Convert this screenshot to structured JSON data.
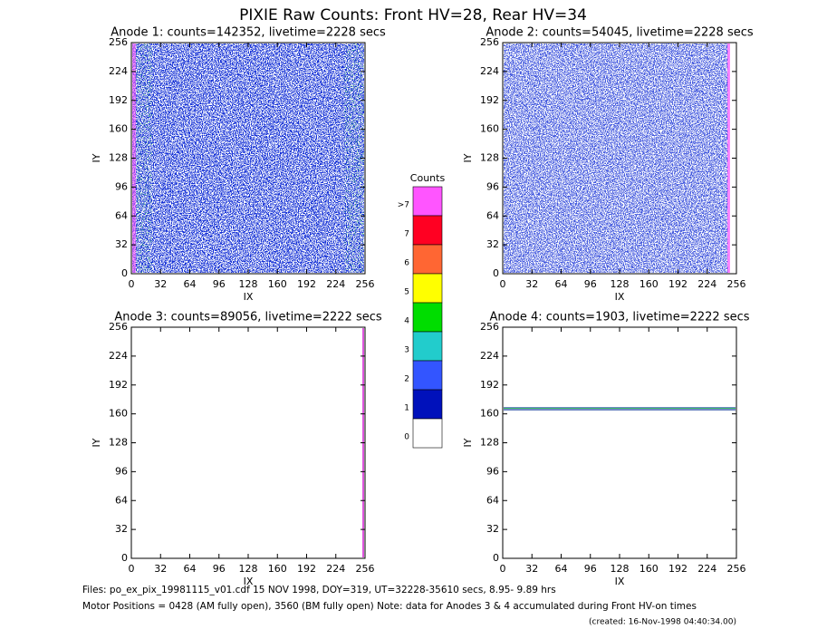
{
  "title": "PIXIE Raw Counts:  Front HV=28, Rear HV=34",
  "chart_data": [
    {
      "type": "heatmap",
      "title": "Anode 1: counts=142352, livetime=2228 secs",
      "xlabel": "IX",
      "ylabel": "IY",
      "xlim": [
        0,
        256
      ],
      "ylim": [
        0,
        256
      ],
      "xticks": [
        0,
        32,
        64,
        96,
        128,
        160,
        192,
        224,
        256
      ],
      "yticks": [
        0,
        32,
        64,
        96,
        128,
        160,
        192,
        224,
        256
      ]
    },
    {
      "type": "heatmap",
      "title": "Anode 2: counts=54045, livetime=2228 secs",
      "xlabel": "IX",
      "ylabel": "IY",
      "xlim": [
        0,
        256
      ],
      "ylim": [
        0,
        256
      ],
      "xticks": [
        0,
        32,
        64,
        96,
        128,
        160,
        192,
        224,
        256
      ],
      "yticks": [
        0,
        32,
        64,
        96,
        128,
        160,
        192,
        224,
        256
      ]
    },
    {
      "type": "heatmap",
      "title": "Anode 3: counts=89056, livetime=2222 secs",
      "xlabel": "IX",
      "ylabel": "IY",
      "xlim": [
        0,
        256
      ],
      "ylim": [
        0,
        256
      ],
      "xticks": [
        0,
        32,
        64,
        96,
        128,
        160,
        192,
        224,
        256
      ],
      "yticks": [
        0,
        32,
        64,
        96,
        128,
        160,
        192,
        224,
        256
      ]
    },
    {
      "type": "heatmap",
      "title": "Anode 4: counts=1903, livetime=2222 secs",
      "xlabel": "IX",
      "ylabel": "IY",
      "xlim": [
        0,
        256
      ],
      "ylim": [
        0,
        256
      ],
      "xticks": [
        0,
        32,
        64,
        96,
        128,
        160,
        192,
        224,
        256
      ],
      "yticks": [
        0,
        32,
        64,
        96,
        128,
        160,
        192,
        224,
        256
      ]
    }
  ],
  "colorbar": {
    "title": "Counts",
    "labels": [
      ">7",
      "7",
      "6",
      "5",
      "4",
      "3",
      "2",
      "1",
      "0"
    ],
    "colors": [
      "#ff55ff",
      "#ff0022",
      "#ff6633",
      "#ffff00",
      "#00dd00",
      "#22cccc",
      "#3355ff",
      "#0011bb",
      "#ffffff"
    ]
  },
  "footer": [
    "Files: po_ex_pix_19981115_v01.cdf    15 NOV 1998, DOY=319, UT=32228-35610 secs,  8.95- 9.89 hrs",
    "Motor Positions = 0428 (AM fully open), 3560 (BM fully open)    Note: data for Anodes 3 & 4 accumulated during Front HV-on times"
  ],
  "created": "(created: 16-Nov-1998 04:40:34.00)"
}
